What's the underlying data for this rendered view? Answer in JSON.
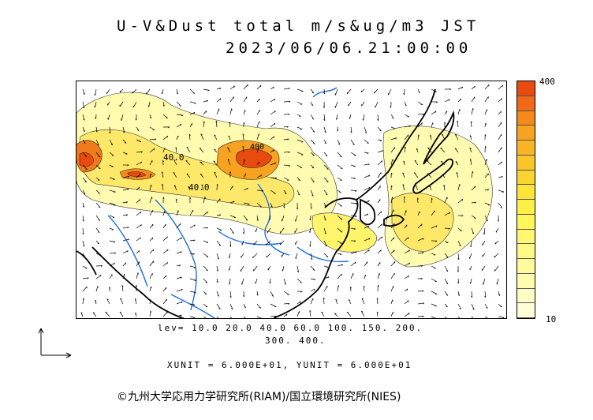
{
  "header": {
    "title": "U-V&Dust total m/s&ug/m3 JST",
    "datetime": "2023/06/06.21:00:00"
  },
  "map": {
    "contour_labels": [
      "40.0",
      "40.0",
      "400"
    ],
    "coast_color": "#000000",
    "river_color": "#1f6fe0"
  },
  "colorbar": {
    "max_label": "400",
    "min_label": "10",
    "colors": [
      "#e84a10",
      "#f06818",
      "#f48a1c",
      "#f7a220",
      "#f9b524",
      "#fbc52a",
      "#fcd432",
      "#fde43a",
      "#fef046",
      "#fff65a",
      "#fff870",
      "#fff986",
      "#fffb9c",
      "#fffcb0",
      "#fffdc4",
      "#fffed6"
    ]
  },
  "footer": {
    "levels_line1": "lev= 10.0 20.0 40.0 60.0 100. 150. 200.",
    "levels_line2": "300. 400.",
    "units": "XUNIT = 6.000E+01, YUNIT = 6.000E+01",
    "copyright": "©九州大学応用力学研究所(RIAM)/国立環境研究所(NIES)"
  }
}
